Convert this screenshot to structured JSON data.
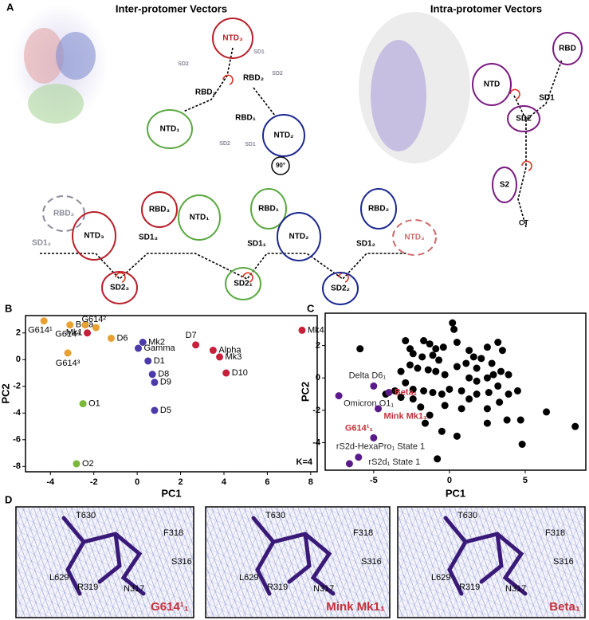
{
  "panel_letters": [
    "A",
    "B",
    "C",
    "D"
  ],
  "panel_a": {
    "titles": [
      "Inter-protomer Vectors",
      "Intra-protomer Vectors"
    ],
    "labels": [
      "NTD₃",
      "SD2",
      "SD1",
      "RBD₃",
      "RBD₂",
      "SD2",
      "RBD₁",
      "NTD₁",
      "NTD₂",
      "SD2",
      "SD1",
      "90°",
      "RBD₂",
      "SD1₂",
      "NTD₃",
      "RBD₃",
      "SD1₃",
      "SD2₃",
      "NTD₁",
      "RBD₁",
      "SD1₁",
      "SD2₁",
      "NTD₂",
      "RBD₂",
      "SD1₂",
      "SD2₂",
      "NTD₃",
      "RBD",
      "NTD",
      "SD1",
      "SD2",
      "S2",
      "CT"
    ]
  },
  "chart_data": [
    {
      "type": "scatter",
      "x_label": "PC1",
      "y_label": "PC2",
      "annotation": "K=4",
      "xlim": [
        -5.15,
        8.3
      ],
      "ylim": [
        -8.4,
        3.3
      ],
      "xticks": [
        -4,
        -2,
        0,
        2,
        4,
        6,
        8
      ],
      "yticks": [
        2,
        0,
        -2,
        -4,
        -6,
        -8
      ],
      "series": [
        {
          "color": "#e8a030",
          "labels": [
            "G614¹",
            "Beta",
            "G614⁴",
            "G614²",
            "D6",
            "G614³"
          ],
          "x": [
            -4.3,
            -3.1,
            -2.4,
            -1.9,
            -1.2,
            -3.2
          ],
          "y": [
            2.9,
            2.6,
            2.6,
            2.4,
            1.6,
            0.5
          ]
        },
        {
          "color": "#c8203a",
          "labels": [
            "Mk1",
            "D7",
            "Alpha",
            "Mk3",
            "D10",
            "Mk4"
          ],
          "x": [
            -2.3,
            2.7,
            3.5,
            3.8,
            4.1,
            7.6
          ],
          "y": [
            2.0,
            1.1,
            0.7,
            0.2,
            -1.0,
            2.2
          ]
        },
        {
          "color": "#4b3aa8",
          "labels": [
            "Mk2",
            "Gamma",
            "D1",
            "D8",
            "D9",
            "D5"
          ],
          "x": [
            0.26,
            0.05,
            0.5,
            0.7,
            0.8,
            0.8
          ],
          "y": [
            1.3,
            0.85,
            -0.1,
            -1.1,
            -1.7,
            -3.8
          ]
        },
        {
          "color": "#7ab83a",
          "labels": [
            "O1",
            "O2"
          ],
          "x": [
            -2.5,
            -2.8
          ],
          "y": [
            -3.3,
            -7.8
          ]
        }
      ]
    },
    {
      "type": "scatter",
      "x_label": "PC1",
      "y_label": "PC2",
      "xlim": [
        -8.2,
        9.0
      ],
      "ylim": [
        -5.7,
        4.0
      ],
      "xticks": [
        -5,
        0,
        5
      ],
      "yticks": [
        2,
        0,
        -2,
        -4
      ],
      "series": [
        {
          "color": "#000000",
          "x": [
            0.2,
            0.3,
            -5.9,
            -1.7,
            -1.3,
            -0.9,
            -0.4,
            -2.9,
            -2.6,
            -2.4,
            -1.8,
            -1.1,
            -0.7,
            0.5,
            1.3,
            1.6,
            1.1,
            0.5,
            1.8,
            2.1,
            2.5,
            3.2,
            3.5,
            2.8,
            3.4,
            3.9,
            2.9,
            2.5,
            1.8,
            1.3,
            -0.3,
            -0.9,
            -1.4,
            -2.1,
            -2.6,
            -3.2,
            -2.9,
            -2.4,
            -1.7,
            -1.1,
            -0.5,
            0.0,
            0.8,
            1.3,
            1.8,
            2.6,
            3.2,
            3.9,
            4.5,
            3.3,
            2.5,
            0.8,
            -0.3,
            -1.3,
            -1.9,
            -2.4,
            -3.2,
            -3.6,
            -4.2,
            -0.5,
            0.5,
            -0.8,
            -1.6,
            2.5,
            3.8,
            4.7,
            6.4,
            8.3,
            4.8
          ],
          "y": [
            3.4,
            3.0,
            1.8,
            2.3,
            2.1,
            1.8,
            1.9,
            2.3,
            1.8,
            1.5,
            1.3,
            1.4,
            1.1,
            2.2,
            1.7,
            1.3,
            0.9,
            0.7,
            0.6,
            1.2,
            1.9,
            2.2,
            1.7,
            0.9,
            0.4,
            0.2,
            0.2,
            0.0,
            -0.2,
            0.0,
            0.2,
            0.4,
            0.5,
            0.6,
            0.8,
            0.4,
            -0.3,
            -0.7,
            -0.8,
            -0.9,
            -1.0,
            -0.7,
            -0.8,
            -1.3,
            -1.0,
            -0.9,
            -0.5,
            -1.0,
            -0.8,
            -1.5,
            -1.9,
            -1.9,
            -1.7,
            -2.3,
            -1.8,
            -1.3,
            -1.2,
            -0.8,
            -1.0,
            -3.3,
            -3.6,
            -5.0,
            -2.8,
            -2.8,
            -2.6,
            -2.6,
            -2.1,
            -3.0,
            -4.1
          ]
        },
        {
          "color": "#5a1a8a",
          "label_color": "#222222",
          "labels": [
            "Delta D6₁",
            "Omicron O1₁",
            "rS2d-HexaPro₁ State 1",
            "rS2d₁ State 1"
          ],
          "x": [
            -5.0,
            -7.3,
            -6.0,
            -6.6
          ],
          "y": [
            -0.5,
            -1.1,
            -4.9,
            -5.3
          ]
        },
        {
          "color": "#5a1a8a",
          "label_color": "#c8303a",
          "labels": [
            "Beta₁",
            "Mink Mk1₁",
            "G614¹₁"
          ],
          "x": [
            -4.0,
            -4.7,
            -5.0
          ],
          "y": [
            -0.9,
            -1.9,
            -3.7
          ]
        }
      ]
    }
  ],
  "panel_d": {
    "residues": [
      "T630",
      "F318",
      "S316",
      "L629",
      "R319",
      "N317"
    ],
    "names": [
      "G614¹₁",
      "Mink Mk1₁",
      "Beta₁"
    ]
  }
}
